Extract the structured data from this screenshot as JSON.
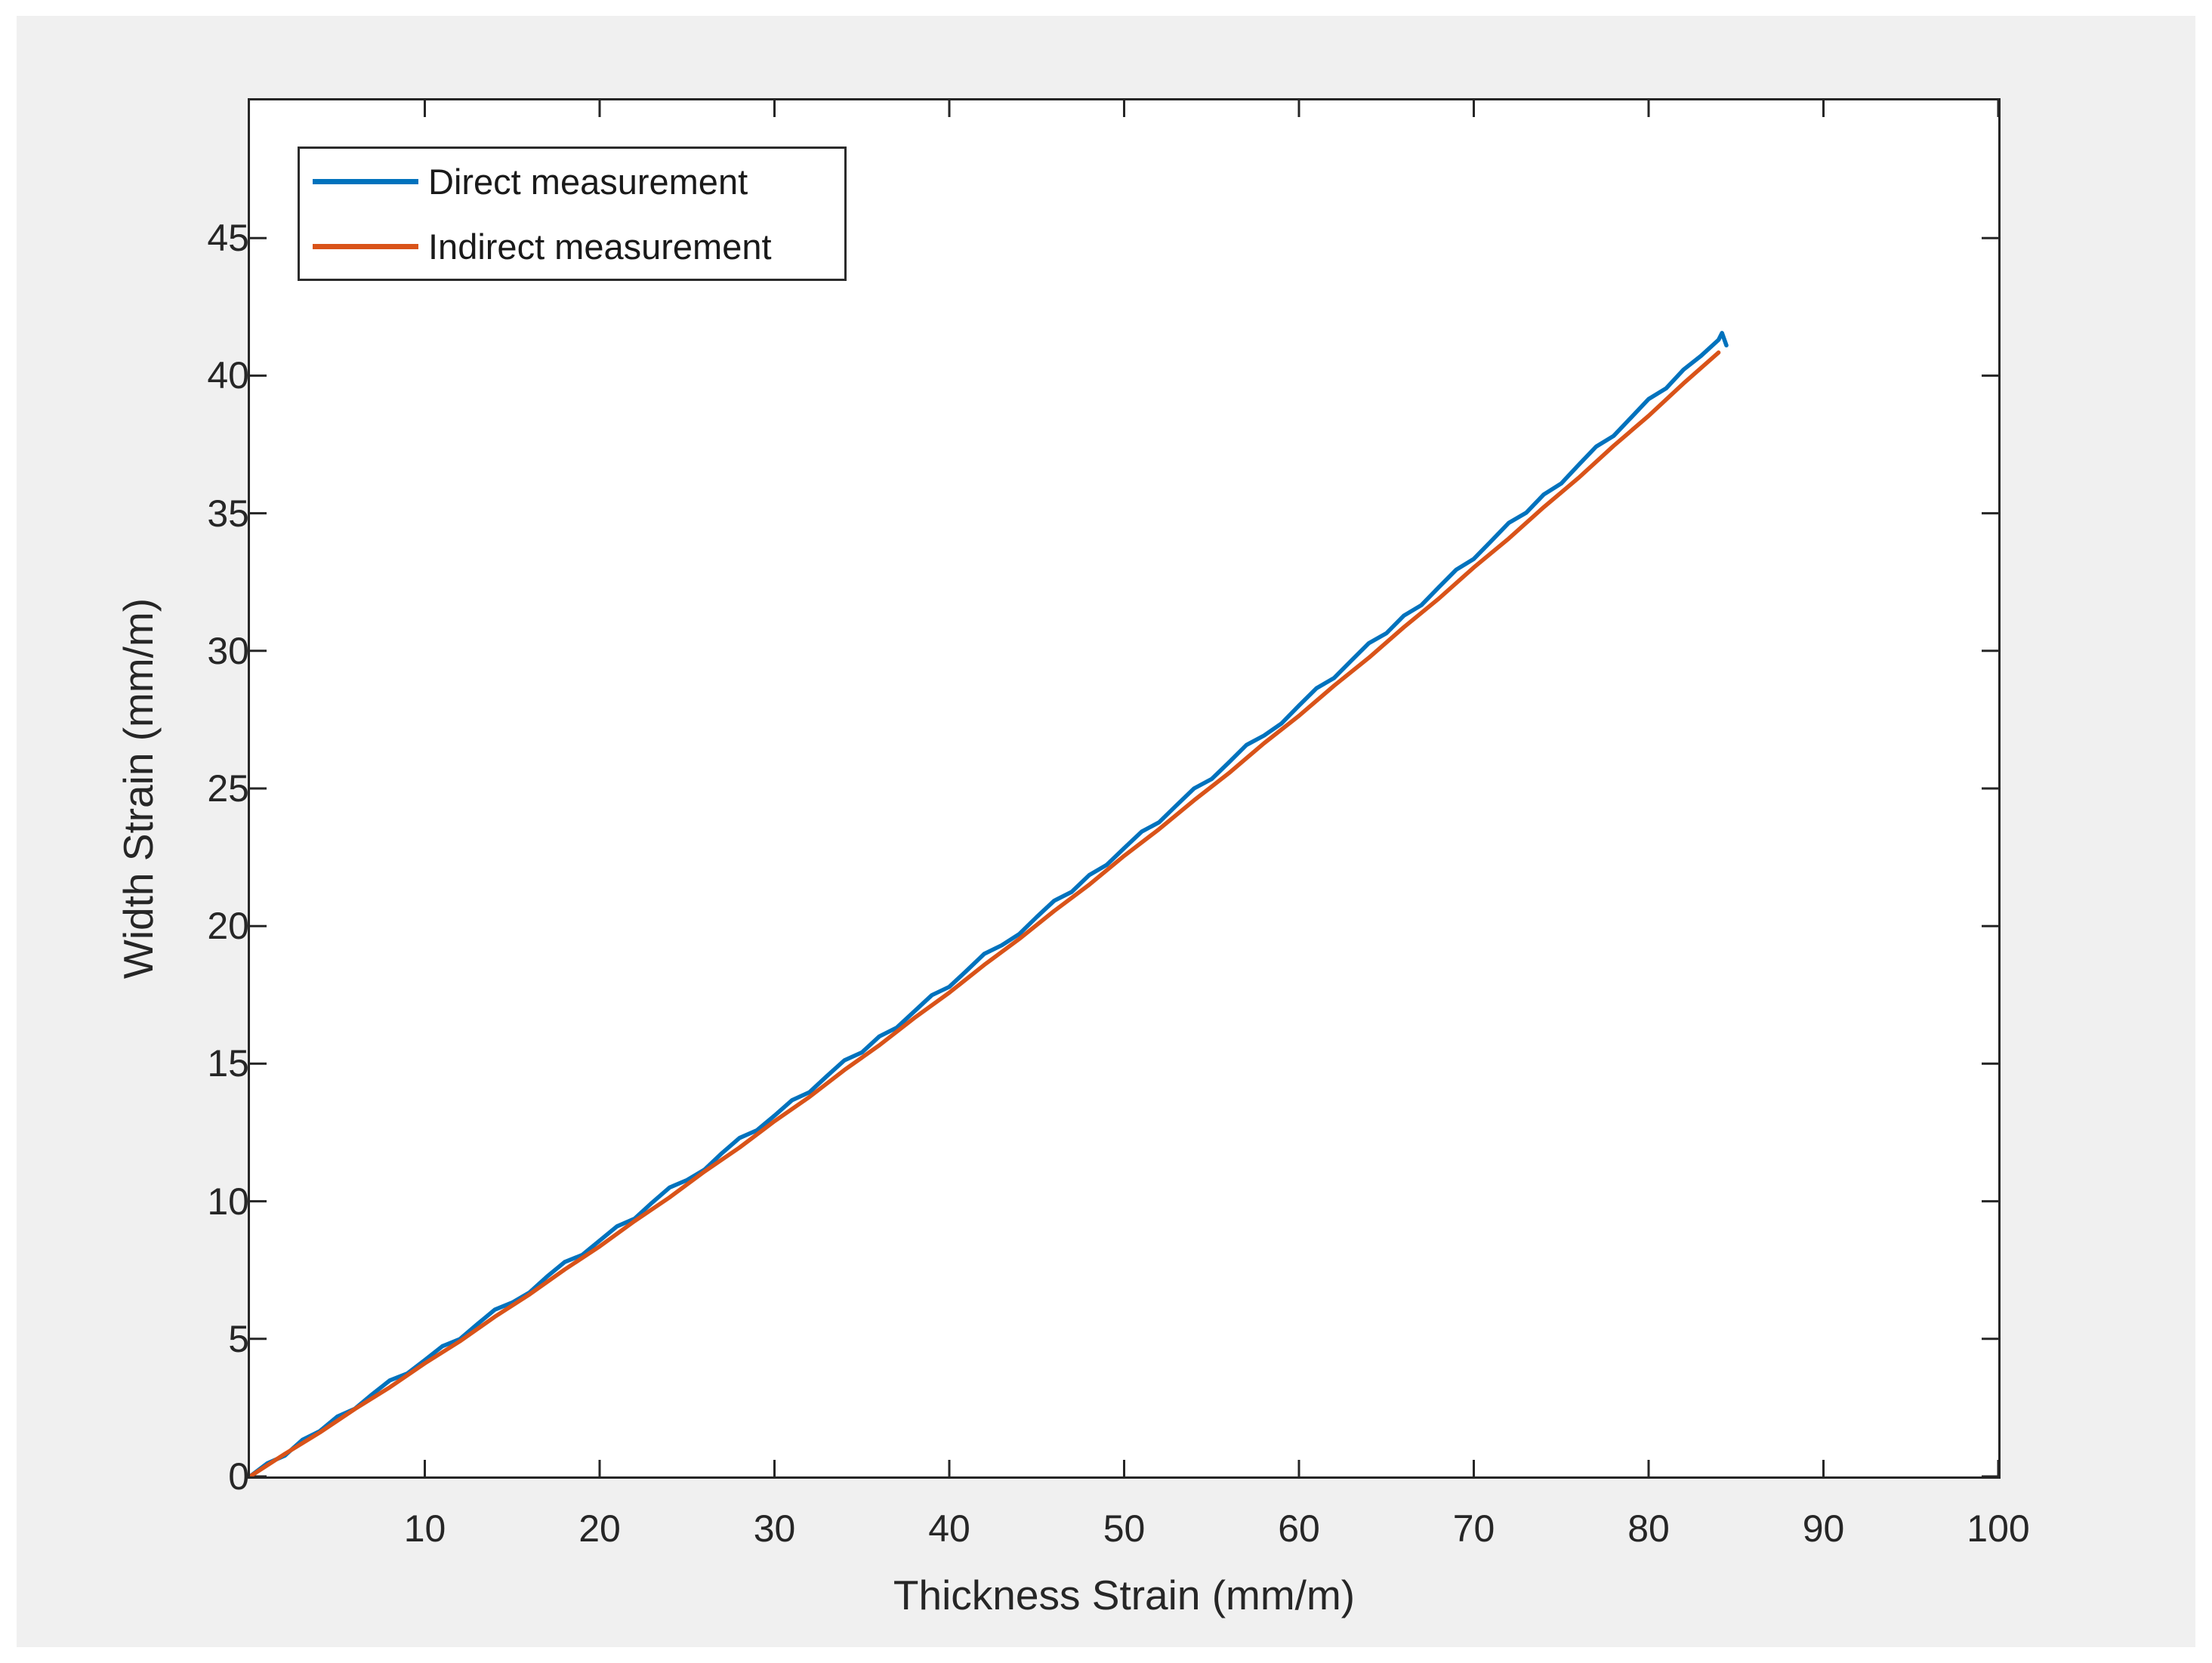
{
  "window": {
    "background": "#ffffff",
    "figure_background": "#f0f0f0",
    "axis_color": "#262626"
  },
  "chart_data": {
    "type": "line",
    "title": "",
    "xlabel": "Thickness Strain (mm/m)",
    "ylabel": "Width Strain (mm/m)",
    "xlim": [
      0,
      100
    ],
    "ylim": [
      0,
      50
    ],
    "x_ticks": [
      10,
      20,
      30,
      40,
      50,
      60,
      70,
      80,
      90,
      100
    ],
    "y_ticks": [
      0,
      5,
      10,
      15,
      20,
      25,
      30,
      35,
      40,
      45
    ],
    "grid": false,
    "tick_direction": "in",
    "box": true,
    "legend": {
      "position": "top-left",
      "bordered": true
    },
    "series": [
      {
        "name": "Direct measurement",
        "color": "#0072BD",
        "line_width": 5.5,
        "x": [
          0,
          1,
          2,
          3,
          4,
          5,
          6,
          7,
          8,
          9,
          10,
          11,
          12,
          13,
          14,
          15,
          16,
          17,
          18,
          19,
          20,
          21,
          22,
          23,
          24,
          25,
          26,
          27,
          28,
          29,
          30,
          31,
          32,
          33,
          34,
          35,
          36,
          37,
          38,
          39,
          40,
          41,
          42,
          43,
          44,
          45,
          46,
          47,
          48,
          49,
          50,
          51,
          52,
          53,
          54,
          55,
          56,
          57,
          58,
          59,
          60,
          61,
          62,
          63,
          64,
          65,
          66,
          67,
          68,
          69,
          70,
          71,
          72,
          73,
          74,
          75,
          76,
          77,
          78,
          79,
          80,
          81,
          82,
          83,
          84,
          84.2,
          84.45
        ],
        "y": [
          0.0,
          0.48,
          0.76,
          1.33,
          1.65,
          2.18,
          2.46,
          2.99,
          3.49,
          3.74,
          4.23,
          4.73,
          4.99,
          5.53,
          6.06,
          6.32,
          6.69,
          7.27,
          7.79,
          8.05,
          8.57,
          9.09,
          9.37,
          9.95,
          10.5,
          10.77,
          11.15,
          11.75,
          12.3,
          12.58,
          13.11,
          13.67,
          13.96,
          14.55,
          15.12,
          15.41,
          15.99,
          16.31,
          16.9,
          17.49,
          17.79,
          18.38,
          18.99,
          19.3,
          19.71,
          20.33,
          20.92,
          21.24,
          21.85,
          22.22,
          22.83,
          23.43,
          23.77,
          24.39,
          25.0,
          25.34,
          25.95,
          26.58,
          26.92,
          27.36,
          28.01,
          28.64,
          29.01,
          29.65,
          30.28,
          30.64,
          31.28,
          31.66,
          32.31,
          32.95,
          33.34,
          33.99,
          34.65,
          35.02,
          35.68,
          36.08,
          36.76,
          37.42,
          37.81,
          38.48,
          39.15,
          39.54,
          40.22,
          40.72,
          41.3,
          41.55,
          41.1
        ]
      },
      {
        "name": "Indirect measurement",
        "color": "#D95319",
        "line_width": 5.5,
        "x": [
          0,
          2,
          4,
          6,
          8,
          10,
          12,
          14,
          16,
          18,
          20,
          22,
          24,
          26,
          28,
          30,
          32,
          34,
          36,
          38,
          40,
          42,
          44,
          46,
          48,
          50,
          52,
          54,
          56,
          58,
          60,
          62,
          64,
          66,
          68,
          70,
          72,
          74,
          76,
          78,
          80,
          82,
          84
        ],
        "y": [
          0.0,
          0.82,
          1.6,
          2.45,
          3.24,
          4.11,
          4.91,
          5.8,
          6.62,
          7.52,
          8.36,
          9.28,
          10.14,
          11.08,
          11.95,
          12.91,
          13.79,
          14.77,
          15.67,
          16.66,
          17.58,
          18.59,
          19.53,
          20.55,
          21.5,
          22.55,
          23.52,
          24.57,
          25.56,
          26.64,
          27.64,
          28.73,
          29.75,
          30.86,
          31.9,
          33.03,
          34.08,
          35.22,
          36.29,
          37.45,
          38.54,
          39.72,
          40.84
        ]
      }
    ]
  }
}
